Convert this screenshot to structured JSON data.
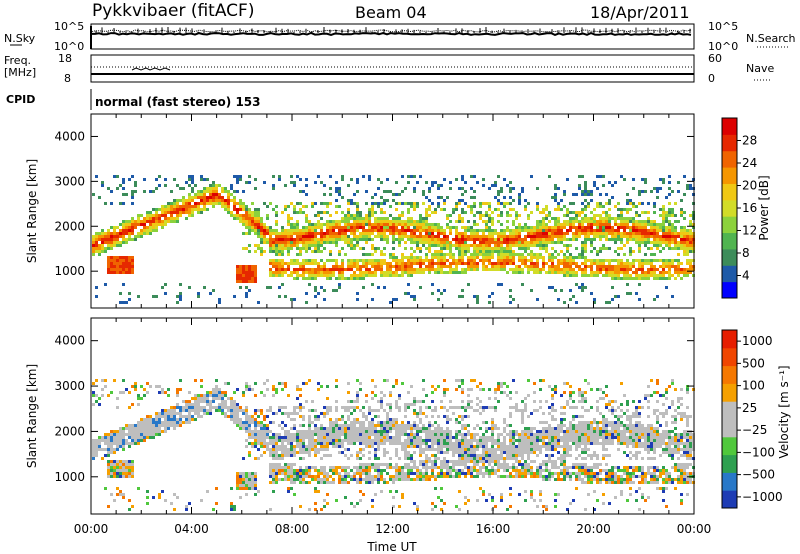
{
  "header": {
    "station": "Pykkvibaer (fitACF)",
    "beam": "Beam 04",
    "date": "18/Apr/2011"
  },
  "params": {
    "nsky_label": "N.Sky",
    "nsearch_label": "N.Search",
    "freq_label": "Freq.",
    "freq_unit": "[MHz]",
    "nave_label": "Nave",
    "cpid_label": "CPID",
    "cpid_text": "normal (fast stereo) 153",
    "noise_ticks_left": [
      "10^5",
      "10^0"
    ],
    "noise_ticks_right": [
      "10^5",
      "10^0"
    ],
    "freq_ticks": [
      "18",
      "8"
    ],
    "nave_ticks": [
      "60",
      "0"
    ]
  },
  "chart_data": [
    {
      "type": "heatmap",
      "title": "",
      "ylabel": "Slant Range [km]",
      "ylim": [
        180,
        4500
      ],
      "yticks": [
        1000,
        2000,
        3000,
        4000
      ],
      "colorbar": {
        "label": "Power [dB]",
        "range": [
          0,
          32
        ],
        "ticks": [
          "28",
          "24",
          "20",
          "16",
          "12",
          "8",
          "4"
        ],
        "colors": [
          "#0000ff",
          "#1e5aa8",
          "#3c8c5a",
          "#50b450",
          "#8cd23c",
          "#d2dc28",
          "#f0c814",
          "#f59600",
          "#f06400",
          "#e62800",
          "#dc0000"
        ]
      }
    },
    {
      "type": "heatmap",
      "title": "",
      "ylabel": "Slant Range [km]",
      "ylim": [
        180,
        4500
      ],
      "yticks": [
        1000,
        2000,
        3000,
        4000
      ],
      "xlabel": "Time UT",
      "xticks": [
        "00:00",
        "04:00",
        "08:00",
        "12:00",
        "16:00",
        "20:00",
        "00:00"
      ],
      "colorbar": {
        "label": "Velocity [m s⁻¹]",
        "ticks": [
          "1000",
          "500",
          "100",
          "25",
          "−25",
          "−100",
          "−500",
          "−1000"
        ],
        "colors": [
          "#1e3cb4",
          "#2878c8",
          "#2ea050",
          "#50c83c",
          "#bebebe",
          "#bebebe",
          "#f5a000",
          "#f57800",
          "#f04600",
          "#e61e00"
        ]
      }
    }
  ]
}
